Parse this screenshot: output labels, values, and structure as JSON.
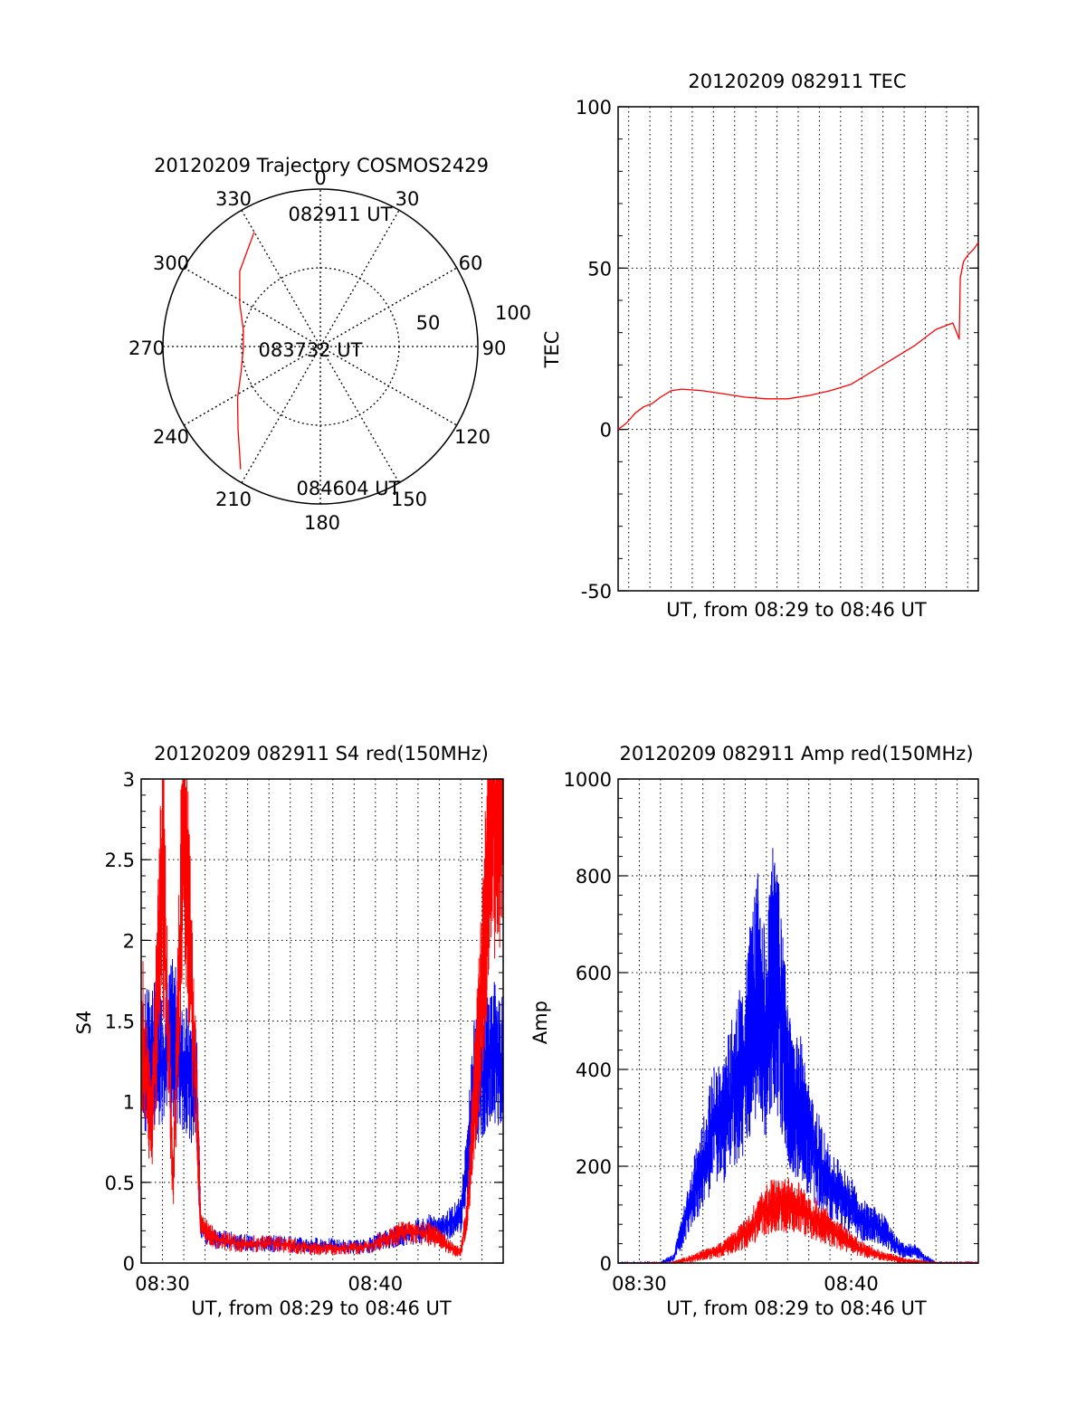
{
  "chart_data": [
    {
      "id": "polar",
      "type": "polar",
      "title": "20120209 Trajectory COSMOS2429",
      "azimuth_labels": [
        "0",
        "30",
        "60",
        "90",
        "120",
        "150",
        "180",
        "210",
        "240",
        "270",
        "300",
        "330"
      ],
      "radial_tick_labels": [
        "50",
        "100"
      ],
      "rlim": [
        0,
        100
      ],
      "grid": true,
      "series": [
        {
          "color": "#ff0000",
          "points": [
            {
              "az": 330,
              "r": 84
            },
            {
              "az": 313,
              "r": 70
            },
            {
              "az": 298,
              "r": 58
            },
            {
              "az": 282,
              "r": 50
            },
            {
              "az": 268,
              "r": 49
            },
            {
              "az": 252,
              "r": 53
            },
            {
              "az": 238,
              "r": 62
            },
            {
              "az": 225,
              "r": 74
            },
            {
              "az": 213,
              "r": 93
            }
          ]
        }
      ],
      "annotations": [
        {
          "text": "082911 UT",
          "az": 10,
          "r": 84
        },
        {
          "text": "083732 UT",
          "az": 272,
          "r": 5
        },
        {
          "text": "084604 UT",
          "az": 170,
          "r": 90
        }
      ]
    },
    {
      "id": "tec",
      "type": "line",
      "title": "20120209 082911 TEC",
      "xlabel": "UT, from 08:29 to 08:46 UT",
      "ylabel": "TEC",
      "xlim": [
        0,
        17
      ],
      "ylim": [
        -50,
        100
      ],
      "ytick_labels": [
        "-50",
        "0",
        "50",
        "100"
      ],
      "yticks": [
        -50,
        0,
        50,
        100
      ],
      "xgrid_minutes": [
        0.5,
        1.5,
        2.5,
        3.5,
        4.5,
        5.5,
        6.5,
        7.5,
        8.5,
        9.5,
        10.5,
        11.5,
        12.5,
        13.5,
        14.5,
        15.5,
        16.5
      ],
      "grid": true,
      "series": [
        {
          "color": "#ff0000",
          "x": [
            0,
            0.4,
            0.8,
            1.2,
            1.6,
            2.0,
            2.5,
            3.0,
            4.0,
            5.0,
            6.0,
            7.0,
            8.0,
            9.0,
            10.0,
            11.0,
            12.0,
            13.0,
            14.0,
            15.0,
            15.8,
            16.1,
            16.15,
            16.3,
            16.5,
            16.8,
            17.0
          ],
          "y": [
            0,
            2,
            5,
            7,
            8,
            10,
            12,
            12.5,
            12,
            11,
            10,
            9.5,
            9.5,
            10.5,
            12,
            14,
            18,
            22,
            26,
            31,
            33,
            28,
            47,
            52,
            54,
            56,
            58
          ]
        }
      ]
    },
    {
      "id": "s4",
      "type": "line",
      "title": "20120209 082911 S4 red(150MHz)",
      "xlabel": "UT, from 08:29 to 08:46 UT",
      "ylabel": "S4",
      "xlim": [
        0,
        17
      ],
      "ylim": [
        0,
        3
      ],
      "ytick_labels": [
        "0",
        "0.5",
        "1",
        "1.5",
        "2",
        "2.5",
        "3"
      ],
      "yticks": [
        0,
        0.5,
        1,
        1.5,
        2,
        2.5,
        3
      ],
      "xtick_labels": [
        "08:30",
        "08:40"
      ],
      "xticks": [
        1,
        11
      ],
      "xgrid_minutes": [
        1,
        2,
        3,
        4,
        5,
        6,
        7,
        8,
        9,
        10,
        11,
        12,
        13,
        14,
        15,
        16
      ],
      "grid": true,
      "series": [
        {
          "color": "#0000ff",
          "x": [
            0,
            0.5,
            1.0,
            1.5,
            2.0,
            2.6,
            2.8,
            3.5,
            4.5,
            5.5,
            6.5,
            7.5,
            8.5,
            9.5,
            10.5,
            11.5,
            12.5,
            13.5,
            14.0,
            14.5,
            15.0,
            15.3,
            15.6,
            16.0,
            16.5,
            17.0
          ],
          "y": [
            1.2,
            1.3,
            1.25,
            1.4,
            1.2,
            1.1,
            0.2,
            0.15,
            0.13,
            0.12,
            0.12,
            0.11,
            0.11,
            0.1,
            0.1,
            0.15,
            0.18,
            0.22,
            0.2,
            0.25,
            0.3,
            0.6,
            1.1,
            1.2,
            1.3,
            1.25
          ]
        },
        {
          "color": "#ff0000",
          "x": [
            0,
            0.5,
            1.0,
            1.5,
            2.0,
            2.6,
            2.8,
            3.5,
            4.5,
            5.5,
            6.5,
            7.5,
            8.5,
            9.5,
            10.5,
            11.5,
            12.5,
            13.5,
            14.0,
            14.5,
            15.0,
            15.3,
            15.6,
            15.9,
            16.2,
            16.5,
            17.0
          ],
          "y": [
            1.5,
            0.8,
            2.5,
            0.5,
            2.8,
            1.0,
            0.22,
            0.15,
            0.12,
            0.12,
            0.12,
            0.1,
            0.09,
            0.09,
            0.1,
            0.15,
            0.2,
            0.18,
            0.15,
            0.1,
            0.06,
            0.3,
            0.9,
            1.5,
            2.2,
            2.9,
            3.0
          ]
        }
      ]
    },
    {
      "id": "amp",
      "type": "line",
      "title": "20120209 082911 Amp red(150MHz)",
      "xlabel": "UT, from 08:29 to 08:46 UT",
      "ylabel": "Amp",
      "xlim": [
        0,
        17
      ],
      "ylim": [
        0,
        1000
      ],
      "ytick_labels": [
        "0",
        "200",
        "400",
        "600",
        "800",
        "1000"
      ],
      "yticks": [
        0,
        200,
        400,
        600,
        800,
        1000
      ],
      "xtick_labels": [
        "08:30",
        "08:40"
      ],
      "xticks": [
        1,
        11
      ],
      "xgrid_minutes": [
        1,
        2,
        3,
        4,
        5,
        6,
        7,
        8,
        9,
        10,
        11,
        12,
        13,
        14,
        15,
        16
      ],
      "grid": true,
      "series": [
        {
          "color": "#0000ff",
          "x": [
            0,
            2.0,
            2.6,
            3.0,
            3.5,
            4.0,
            4.5,
            5.0,
            5.5,
            6.0,
            6.3,
            6.6,
            7.0,
            7.3,
            7.6,
            8.0,
            8.3,
            8.6,
            9.0,
            9.5,
            10.0,
            10.5,
            11.0,
            11.5,
            12.0,
            12.5,
            13.0,
            13.5,
            14.0,
            14.5,
            15.0,
            17.0
          ],
          "y": [
            0,
            0,
            10,
            60,
            140,
            200,
            280,
            300,
            360,
            420,
            500,
            560,
            460,
            600,
            540,
            380,
            320,
            330,
            250,
            210,
            160,
            140,
            120,
            90,
            80,
            70,
            40,
            25,
            25,
            10,
            0,
            0
          ]
        },
        {
          "color": "#ff0000",
          "x": [
            0,
            2.6,
            3.0,
            3.5,
            4.0,
            4.5,
            5.0,
            5.5,
            6.0,
            6.5,
            7.0,
            7.5,
            8.0,
            8.5,
            9.0,
            9.5,
            10.0,
            10.5,
            11.0,
            11.5,
            12.0,
            12.5,
            13.0,
            13.5,
            14.0,
            14.5,
            15.0,
            17.0
          ],
          "y": [
            0,
            0,
            4,
            10,
            16,
            22,
            30,
            45,
            60,
            85,
            110,
            125,
            120,
            115,
            100,
            85,
            70,
            55,
            40,
            30,
            20,
            15,
            10,
            5,
            3,
            1,
            0,
            0
          ]
        }
      ]
    }
  ]
}
